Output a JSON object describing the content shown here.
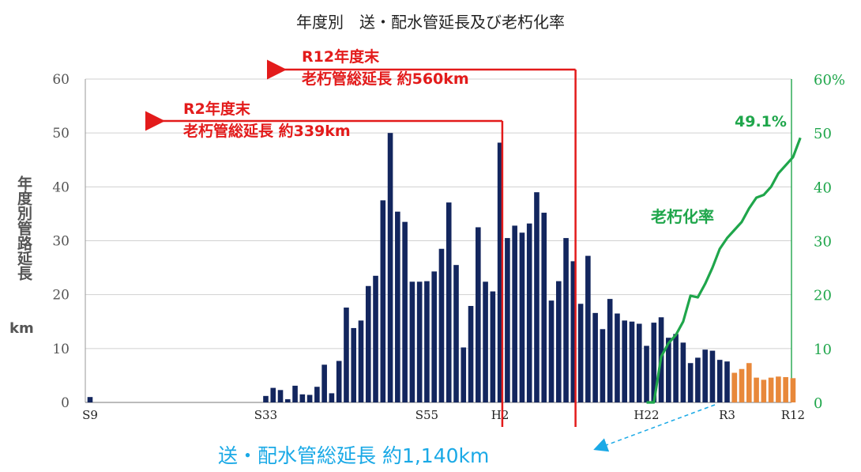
{
  "title": "年度別　送・配水管延長及び老朽化率",
  "ylabel": "年度別管路延長",
  "ylabel_unit": "km",
  "annotations": {
    "r12": {
      "line1": "R12年度末",
      "line2": "老朽管総延長  約560km"
    },
    "r2": {
      "line1": "R2年度末",
      "line2": "老朽管総延長  約339km"
    },
    "rate_label": "老朽化率",
    "rate_value": "49.1%",
    "total": "送・配水管総延長  約1,140km"
  },
  "colors": {
    "actual": "#13265e",
    "planned": "#e8883a",
    "rate": "#1fa64b",
    "marker": "#e31b1b",
    "total": "#1aa9e6"
  },
  "chart_data": {
    "type": "bar",
    "x_first": "S9",
    "x_tick_labels": [
      {
        "label": "S9",
        "index": 0
      },
      {
        "label": "S33",
        "index": 24
      },
      {
        "label": "S55",
        "index": 46
      },
      {
        "label": "H2",
        "index": 56
      },
      {
        "label": "H22",
        "index": 76
      },
      {
        "label": "R3",
        "index": 87
      },
      {
        "label": "R12",
        "index": 96
      }
    ],
    "left_axis": {
      "min": 0,
      "max": 60,
      "ticks": [
        0,
        10,
        20,
        30,
        40,
        50,
        60
      ]
    },
    "right_axis": {
      "min": 0,
      "max": 60,
      "ticks": [
        "0",
        "10",
        "20",
        "30",
        "40",
        "50",
        "60%"
      ]
    },
    "series_actual": {
      "start_index": 0,
      "values": [
        1,
        0,
        0,
        0,
        0,
        0,
        0,
        0,
        0,
        0,
        0,
        0,
        0,
        0,
        0,
        0,
        0,
        0,
        0,
        0,
        0,
        0,
        0,
        0,
        1.2,
        2.7,
        2.3,
        0.6,
        3.1,
        1.5,
        1.4,
        2.9,
        7,
        1.7,
        7.7,
        17.6,
        13.8,
        15.2,
        21.6,
        23.5,
        37.5,
        50,
        35.4,
        33.5,
        22.4,
        22.4,
        22.5,
        24.3,
        28.5,
        37.1,
        25.5,
        10.2,
        17.9,
        32.5,
        22.4,
        20.6,
        48.2,
        30.5,
        32.8,
        31.5,
        33.2,
        39,
        35.2,
        18.9,
        22.5,
        30.5,
        26.2,
        18.3,
        27.2,
        16.6,
        13.6,
        19.2,
        16.5,
        15.2,
        15,
        14.6,
        10.5,
        14.8,
        15.8,
        12,
        12.7,
        11.1,
        7.3,
        8.3,
        9.8,
        9.6,
        7.9,
        7.6,
        5.3
      ]
    },
    "series_planned": {
      "start_index": 88,
      "values": [
        5.5,
        6.2,
        7.3,
        4.6,
        4.2,
        4.6,
        4.8,
        4.7,
        4.5
      ]
    },
    "series_rate": {
      "name": "老朽化率",
      "points": [
        [
          76,
          0
        ],
        [
          77,
          0
        ],
        [
          78,
          8.5
        ],
        [
          79,
          11
        ],
        [
          80,
          12.5
        ],
        [
          81,
          15
        ],
        [
          82,
          19.8
        ],
        [
          83,
          19.5
        ],
        [
          84,
          22
        ],
        [
          85,
          25
        ],
        [
          86,
          28.5
        ],
        [
          87,
          30.5
        ],
        [
          88,
          32
        ],
        [
          89,
          33.5
        ],
        [
          90,
          36
        ],
        [
          91,
          38
        ],
        [
          92,
          38.5
        ],
        [
          93,
          40
        ],
        [
          94,
          42.5
        ],
        [
          95,
          44
        ],
        [
          96,
          45.5
        ],
        [
          97,
          49.1
        ]
      ]
    },
    "markers": [
      {
        "label": "R2年度末",
        "index": 56.3
      },
      {
        "label": "R12年度末",
        "index": 66.3
      }
    ]
  }
}
